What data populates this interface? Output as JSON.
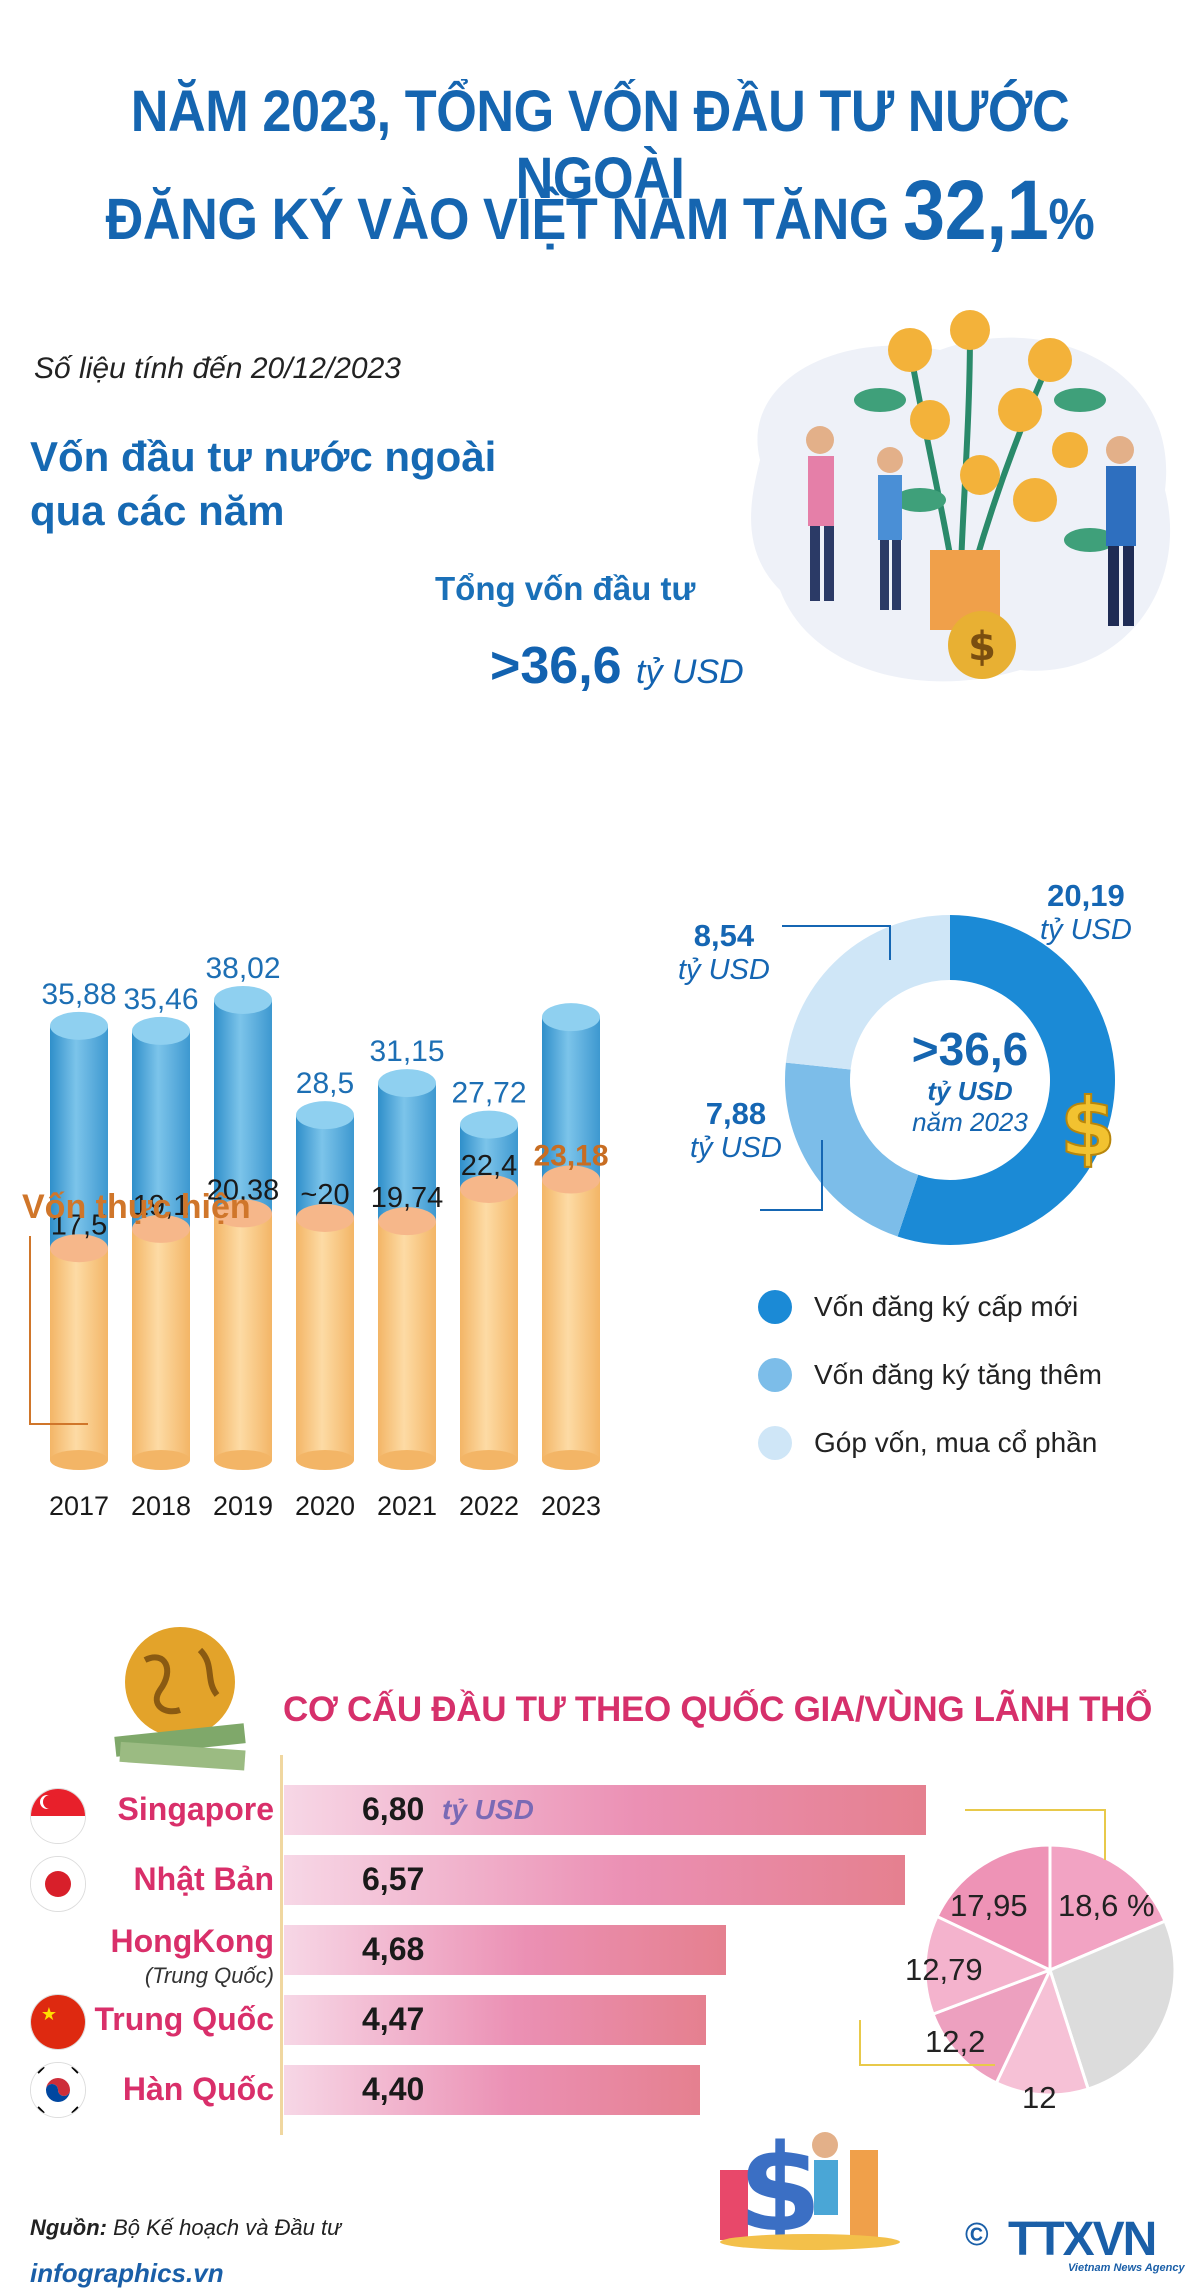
{
  "title": {
    "line1": "NĂM 2023, TỔNG VỐN ĐẦU TƯ NƯỚC NGOÀI",
    "line2_prefix": "ĐĂNG KÝ VÀO VIỆT NAM TĂNG ",
    "line2_value": "32,1",
    "line2_pct": "%"
  },
  "data_note": "Số liệu tính đến 20/12/2023",
  "section1": {
    "heading_line1": "Vốn đầu tư nước ngoài",
    "heading_line2": "qua các năm",
    "total_label": "Tổng vốn đầu tư",
    "total_value": ">36,6",
    "total_unit": "tỷ USD",
    "realized_label": "Vốn thực hiện"
  },
  "chart_data": [
    {
      "type": "bar",
      "categories": [
        "2017",
        "2018",
        "2019",
        "2020",
        "2021",
        "2022",
        "2023"
      ],
      "series": [
        {
          "name": "Tổng vốn đầu tư",
          "values": [
            35.88,
            35.46,
            38.02,
            28.5,
            31.15,
            27.72,
            36.6
          ],
          "labels": [
            "35,88",
            "35,46",
            "38,02",
            "28,5",
            "31,15",
            "27,72",
            ""
          ]
        },
        {
          "name": "Vốn thực hiện",
          "values": [
            17.5,
            19.1,
            20.38,
            20,
            19.74,
            22.4,
            23.18
          ],
          "labels": [
            "17,5",
            "19,1",
            "20,38",
            "~20",
            "19,74",
            "22,4",
            "23,18"
          ]
        }
      ],
      "colors": {
        "total": "#4aa6d6",
        "realized": "#f6c477",
        "highlight_label": "#c86d22"
      }
    },
    {
      "type": "pie",
      "variant": "donut",
      "center_value": ">36,6",
      "center_unit": "tỷ USD",
      "center_year": "năm 2023",
      "slices": [
        {
          "name": "Vốn đăng ký cấp mới",
          "value": 20.19,
          "label": "20,19",
          "unit": "tỷ USD",
          "color": "#1b8ad6"
        },
        {
          "name": "Vốn đăng ký tăng thêm",
          "value": 7.88,
          "label": "7,88",
          "unit": "tỷ USD",
          "color": "#7cbde9"
        },
        {
          "name": "Góp vốn, mua cổ phần",
          "value": 8.54,
          "label": "8,54",
          "unit": "tỷ USD",
          "color": "#cfe6f7"
        }
      ]
    },
    {
      "type": "bar",
      "orientation": "horizontal",
      "title": "CƠ CẤU ĐẦU TƯ THEO QUỐC GIA/VÙNG LÃNH THỔ",
      "unit": "tỷ USD",
      "categories": [
        "Singapore",
        "Nhật Bản",
        "HongKong",
        "Trung Quốc",
        "Hàn Quốc"
      ],
      "category_notes": [
        "",
        "",
        "(Trung Quốc)",
        "",
        ""
      ],
      "values": [
        6.8,
        6.57,
        4.68,
        4.47,
        4.4
      ],
      "labels": [
        "6,80",
        "6,57",
        "4,68",
        "4,47",
        "4,40"
      ]
    },
    {
      "type": "pie",
      "slices": [
        {
          "value": 18.6,
          "label": "18,6 %",
          "color": "#f2a3c3"
        },
        {
          "value": 17.95,
          "label": "17,95",
          "color": "#ee93b6"
        },
        {
          "value": 12.79,
          "label": "12,79",
          "color": "#f4b3cd"
        },
        {
          "value": 12.2,
          "label": "12,2",
          "color": "#eda0bf"
        },
        {
          "value": 12,
          "label": "12",
          "color": "#f6c1d6"
        },
        {
          "value": 26.46,
          "label": "",
          "color": "#dcdcdc"
        }
      ]
    }
  ],
  "legend": [
    {
      "label": "Vốn đăng ký cấp mới",
      "color": "#1b8ad6"
    },
    {
      "label": "Vốn đăng ký tăng thêm",
      "color": "#7cbde9"
    },
    {
      "label": "Góp vốn, mua cổ phần",
      "color": "#cfe6f7"
    }
  ],
  "section2_title": "CƠ CẤU ĐẦU TƯ THEO QUỐC GIA/VÙNG LÃNH THỔ",
  "footer": {
    "source_label": "Nguồn:",
    "source_text": "Bộ Kế hoạch và Đầu tư",
    "site": "infographics.vn",
    "copyright": "©",
    "brand": "TTXVN",
    "brand_sub": "Vietnam News Agency"
  },
  "icons": [
    "money-tree-illustration",
    "globe-money-icon",
    "dollar-sign-icon",
    "singapore-flag-icon",
    "japan-flag-icon",
    "hongkong-flag-icon",
    "china-flag-icon",
    "korea-flag-icon",
    "dollar-chart-illustration"
  ]
}
